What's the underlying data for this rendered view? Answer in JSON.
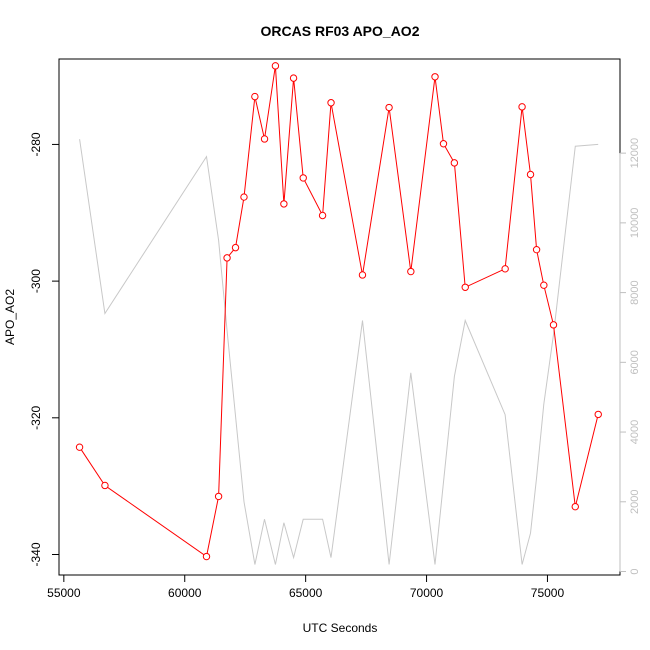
{
  "chart_data": {
    "type": "line",
    "title": "ORCAS RF03 APO_AO2",
    "xlabel": "UTC Seconds",
    "ylabel": "APO_AO2",
    "xlim": [
      54800,
      78000
    ],
    "ylim": [
      -343,
      -267.5
    ],
    "y2lim": [
      -100,
      14700
    ],
    "x_ticks": [
      55000,
      60000,
      65000,
      70000,
      75000
    ],
    "y_ticks": [
      -340,
      -320,
      -300,
      -280
    ],
    "y2_ticks": [
      0,
      2000,
      4000,
      6000,
      8000,
      10000,
      12000
    ],
    "x_tick_labels": [
      "55000",
      "60000",
      "65000",
      "70000",
      "75000"
    ],
    "y_tick_labels": [
      "-340",
      "-320",
      "-300",
      "-280"
    ],
    "y2_tick_labels": [
      "0",
      "2000",
      "4000",
      "6000",
      "8000",
      "10000",
      "12000"
    ],
    "series": [
      {
        "color": "#ff0000",
        "style": "line+circles",
        "axis": "left",
        "x": [
          55650,
          56700,
          60900,
          61400,
          61750,
          62100,
          62450,
          62900,
          63300,
          63750,
          64100,
          64500,
          64900,
          65700,
          66050,
          67350,
          68450,
          69350,
          70350,
          70700,
          71150,
          71600,
          73250,
          73950,
          74300,
          74550,
          74850,
          75250,
          76150,
          77100
        ],
        "y": [
          -324.3,
          -329.9,
          -340.3,
          -331.5,
          -296.6,
          -295.1,
          -287.7,
          -273.0,
          -279.2,
          -268.5,
          -288.7,
          -270.3,
          -284.9,
          -290.4,
          -273.9,
          -299.1,
          -274.6,
          -298.6,
          -270.1,
          -279.9,
          -282.7,
          -300.9,
          -298.2,
          -274.5,
          -284.4,
          -295.4,
          -300.6,
          -306.4,
          -333.0,
          -319.5
        ]
      },
      {
        "color": "#c8c8c8",
        "style": "line",
        "axis": "right",
        "x": [
          55650,
          56700,
          60900,
          61400,
          61750,
          62450,
          62900,
          63300,
          63750,
          64100,
          64500,
          64900,
          65700,
          66050,
          67350,
          68450,
          69350,
          70350,
          71150,
          71600,
          73250,
          73950,
          74300,
          74550,
          74850,
          75250,
          76150,
          77100
        ],
        "y": [
          12400,
          7400,
          11900,
          9500,
          6900,
          2000,
          200,
          1500,
          200,
          1400,
          400,
          1500,
          1500,
          400,
          7200,
          200,
          5700,
          200,
          5600,
          7200,
          4500,
          200,
          1100,
          2700,
          4800,
          6800,
          12200,
          12250
        ]
      }
    ]
  }
}
